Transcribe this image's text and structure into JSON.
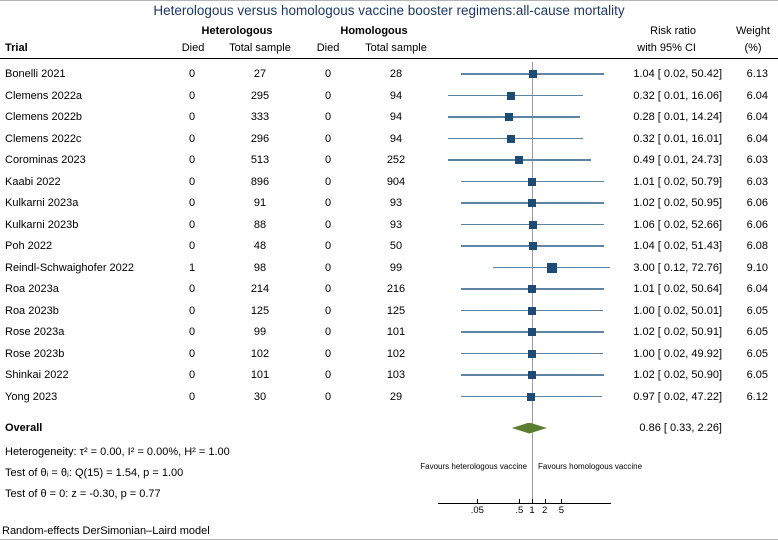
{
  "title": "Heterologous versus homologous vaccine booster regimens:all-cause mortality",
  "colors": {
    "title": "#1f3864",
    "marker": "#1d4b73",
    "ci_line": "#5d85a3",
    "diamond": "#5a7d2e",
    "ref_line": "#9c9c9c"
  },
  "header": {
    "group_heterologous": "Heterologous",
    "group_homologous": "Homologous",
    "trial": "Trial",
    "died": "Died",
    "total_sample": "Total sample",
    "risk_ratio_line1": "Risk ratio",
    "risk_ratio_line2": "with 95% CI",
    "weight_line1": "Weight",
    "weight_line2": "(%)"
  },
  "chart_data": {
    "type": "forest",
    "x_axis": {
      "scale": "log10",
      "ticks": [
        {
          "label": ".05",
          "value": 0.05
        },
        {
          "label": ".5",
          "value": 0.5
        },
        {
          "label": "1",
          "value": 1
        },
        {
          "label": "2",
          "value": 2
        },
        {
          "label": "5",
          "value": 5
        }
      ],
      "reference_value": 1
    },
    "trials": [
      {
        "name": "Bonelli 2021",
        "died_het": 0,
        "total_het": 27,
        "died_hom": 0,
        "total_hom": 28,
        "rr": 1.04,
        "ci_low": 0.02,
        "ci_high": 50.42,
        "rr_text": "1.04 [ 0.02, 50.42]",
        "weight_pct": 6.13,
        "weight_text": "6.13"
      },
      {
        "name": "Clemens 2022a",
        "died_het": 0,
        "total_het": 295,
        "died_hom": 0,
        "total_hom": 94,
        "rr": 0.32,
        "ci_low": 0.01,
        "ci_high": 16.06,
        "rr_text": "0.32 [ 0.01, 16.06]",
        "weight_pct": 6.04,
        "weight_text": "6.04"
      },
      {
        "name": "Clemens 2022b",
        "died_het": 0,
        "total_het": 333,
        "died_hom": 0,
        "total_hom": 94,
        "rr": 0.28,
        "ci_low": 0.01,
        "ci_high": 14.24,
        "rr_text": "0.28 [ 0.01, 14.24]",
        "weight_pct": 6.04,
        "weight_text": "6.04"
      },
      {
        "name": "Clemens 2022c",
        "died_het": 0,
        "total_het": 296,
        "died_hom": 0,
        "total_hom": 94,
        "rr": 0.32,
        "ci_low": 0.01,
        "ci_high": 16.01,
        "rr_text": "0.32 [ 0.01, 16.01]",
        "weight_pct": 6.04,
        "weight_text": "6.04"
      },
      {
        "name": "Corominas 2023",
        "died_het": 0,
        "total_het": 513,
        "died_hom": 0,
        "total_hom": 252,
        "rr": 0.49,
        "ci_low": 0.01,
        "ci_high": 24.73,
        "rr_text": "0.49 [ 0.01, 24.73]",
        "weight_pct": 6.03,
        "weight_text": "6.03"
      },
      {
        "name": "Kaabi 2022",
        "died_het": 0,
        "total_het": 896,
        "died_hom": 0,
        "total_hom": 904,
        "rr": 1.01,
        "ci_low": 0.02,
        "ci_high": 50.79,
        "rr_text": "1.01 [ 0.02, 50.79]",
        "weight_pct": 6.03,
        "weight_text": "6.03"
      },
      {
        "name": "Kulkarni 2023a",
        "died_het": 0,
        "total_het": 91,
        "died_hom": 0,
        "total_hom": 93,
        "rr": 1.02,
        "ci_low": 0.02,
        "ci_high": 50.95,
        "rr_text": "1.02 [ 0.02, 50.95]",
        "weight_pct": 6.06,
        "weight_text": "6.06"
      },
      {
        "name": "Kulkarni 2023b",
        "died_het": 0,
        "total_het": 88,
        "died_hom": 0,
        "total_hom": 93,
        "rr": 1.06,
        "ci_low": 0.02,
        "ci_high": 52.66,
        "rr_text": "1.06 [ 0.02, 52.66]",
        "weight_pct": 6.06,
        "weight_text": "6.06"
      },
      {
        "name": "Poh 2022",
        "died_het": 0,
        "total_het": 48,
        "died_hom": 0,
        "total_hom": 50,
        "rr": 1.04,
        "ci_low": 0.02,
        "ci_high": 51.43,
        "rr_text": "1.04 [ 0.02, 51.43]",
        "weight_pct": 6.08,
        "weight_text": "6.08"
      },
      {
        "name": "Reindl-Schwaighofer 2022",
        "died_het": 1,
        "total_het": 98,
        "died_hom": 0,
        "total_hom": 99,
        "rr": 3.0,
        "ci_low": 0.12,
        "ci_high": 72.76,
        "rr_text": "3.00 [ 0.12, 72.76]",
        "weight_pct": 9.1,
        "weight_text": "9.10"
      },
      {
        "name": "Roa 2023a",
        "died_het": 0,
        "total_het": 214,
        "died_hom": 0,
        "total_hom": 216,
        "rr": 1.01,
        "ci_low": 0.02,
        "ci_high": 50.64,
        "rr_text": "1.01 [ 0.02, 50.64]",
        "weight_pct": 6.04,
        "weight_text": "6.04"
      },
      {
        "name": "Roa 2023b",
        "died_het": 0,
        "total_het": 125,
        "died_hom": 0,
        "total_hom": 125,
        "rr": 1.0,
        "ci_low": 0.02,
        "ci_high": 50.01,
        "rr_text": "1.00 [ 0.02, 50.01]",
        "weight_pct": 6.05,
        "weight_text": "6.05"
      },
      {
        "name": "Rose 2023a",
        "died_het": 0,
        "total_het": 99,
        "died_hom": 0,
        "total_hom": 101,
        "rr": 1.02,
        "ci_low": 0.02,
        "ci_high": 50.91,
        "rr_text": "1.02 [ 0.02, 50.91]",
        "weight_pct": 6.05,
        "weight_text": "6.05"
      },
      {
        "name": "Rose 2023b",
        "died_het": 0,
        "total_het": 102,
        "died_hom": 0,
        "total_hom": 102,
        "rr": 1.0,
        "ci_low": 0.02,
        "ci_high": 49.92,
        "rr_text": "1.00 [ 0.02, 49.92]",
        "weight_pct": 6.05,
        "weight_text": "6.05"
      },
      {
        "name": "Shinkai 2022",
        "died_het": 0,
        "total_het": 101,
        "died_hom": 0,
        "total_hom": 103,
        "rr": 1.02,
        "ci_low": 0.02,
        "ci_high": 50.9,
        "rr_text": "1.02 [ 0.02, 50.90]",
        "weight_pct": 6.05,
        "weight_text": "6.05"
      },
      {
        "name": "Yong 2023",
        "died_het": 0,
        "total_het": 30,
        "died_hom": 0,
        "total_hom": 29,
        "rr": 0.97,
        "ci_low": 0.02,
        "ci_high": 47.22,
        "rr_text": "0.97 [ 0.02, 47.22]",
        "weight_pct": 6.12,
        "weight_text": "6.12"
      }
    ],
    "overall": {
      "label": "Overall",
      "rr": 0.86,
      "ci_low": 0.33,
      "ci_high": 2.26,
      "rr_text": "0.86 [ 0.33,   2.26]"
    },
    "stats": [
      "Heterogeneity: τ² = 0.00, I² = 0.00%, H² = 1.00",
      "Test of θᵢ = θⱼ: Q(15) = 1.54, p = 1.00",
      "Test of θ = 0: z = -0.30, p = 0.77"
    ],
    "favours_left": "Favours heterologous vaccine",
    "favours_right": "Favours homologous vaccine",
    "note": "Random-effects DerSimonian–Laird model"
  }
}
